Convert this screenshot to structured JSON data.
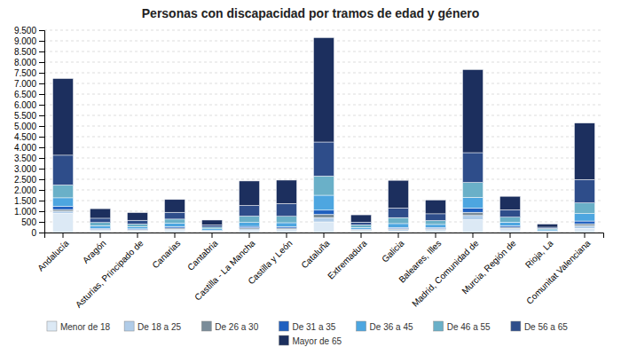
{
  "chart_data": {
    "type": "bar",
    "stacked": true,
    "title": "Personas con discapacidad por tramos de edad y género",
    "categories": [
      "Andalucía",
      "Aragón",
      "Asturias, Principado de",
      "Canarias",
      "Cantabria",
      "Castilla - La Mancha",
      "Castilla y León",
      "Cataluña",
      "Extremadura",
      "Galicia",
      "Baleares, Illes",
      "Madrid, Comunidad de",
      "Murcia, Región de",
      "Rioja, La",
      "Comunitat Valenciana"
    ],
    "series": [
      {
        "name": "Menor de 18",
        "color": "#dce9f5",
        "values": [
          900,
          80,
          70,
          100,
          40,
          100,
          90,
          500,
          60,
          80,
          90,
          600,
          130,
          30,
          200
        ]
      },
      {
        "name": "De 18 a 25",
        "color": "#b0cce8",
        "values": [
          100,
          40,
          40,
          60,
          25,
          70,
          70,
          200,
          40,
          60,
          55,
          200,
          70,
          20,
          120
        ]
      },
      {
        "name": "De 26 a 30",
        "color": "#7a8c99",
        "values": [
          80,
          30,
          25,
          50,
          15,
          50,
          50,
          150,
          25,
          40,
          40,
          150,
          50,
          10,
          90
        ]
      },
      {
        "name": "De 31 a 35",
        "color": "#1f5fbf",
        "values": [
          150,
          50,
          40,
          70,
          25,
          70,
          70,
          200,
          35,
          60,
          55,
          200,
          70,
          20,
          130
        ]
      },
      {
        "name": "De 36 a 45",
        "color": "#4da6e0",
        "values": [
          400,
          120,
          100,
          150,
          70,
          180,
          180,
          700,
          80,
          180,
          140,
          500,
          170,
          50,
          350
        ]
      },
      {
        "name": "De 46 a 55",
        "color": "#6ab0c8",
        "values": [
          600,
          150,
          120,
          200,
          80,
          300,
          300,
          900,
          120,
          280,
          180,
          700,
          230,
          60,
          500
        ]
      },
      {
        "name": "De 56 a 65",
        "color": "#2e4d8a",
        "values": [
          1400,
          200,
          180,
          320,
          100,
          500,
          600,
          1600,
          130,
          450,
          320,
          1400,
          350,
          60,
          1100
        ]
      },
      {
        "name": "Mayor de 65",
        "color": "#1c2f5e",
        "values": [
          3600,
          450,
          360,
          600,
          230,
          1150,
          1100,
          4900,
          340,
          1300,
          650,
          3900,
          630,
          150,
          2650
        ]
      }
    ],
    "ylim": [
      0,
      9500
    ],
    "yticks": [
      0,
      500,
      {
        "value": 1000,
        "label": "1.000"
      },
      {
        "value": 1500,
        "label": "1.500"
      },
      {
        "value": 2000,
        "label": "2.000"
      },
      {
        "value": 2500,
        "label": "2.500"
      },
      {
        "value": 3000,
        "label": "3.000"
      },
      {
        "value": 3500,
        "label": "3.500"
      },
      {
        "value": 4000,
        "label": "4.000"
      },
      {
        "value": 4500,
        "label": "4.500"
      },
      {
        "value": 5000,
        "label": "5.000"
      },
      {
        "value": 5500,
        "label": "5.500"
      },
      {
        "value": 6000,
        "label": "6.000"
      },
      {
        "value": 6500,
        "label": "6.500"
      },
      {
        "value": 7000,
        "label": "7.000"
      },
      {
        "value": 7500,
        "label": "7.500"
      },
      {
        "value": 8000,
        "label": "8.000"
      },
      {
        "value": 8500,
        "label": "8.500"
      },
      {
        "value": 9000,
        "label": "9.000"
      },
      {
        "value": 9500,
        "label": "9.500"
      }
    ],
    "grid": true,
    "legend": "bottom"
  }
}
